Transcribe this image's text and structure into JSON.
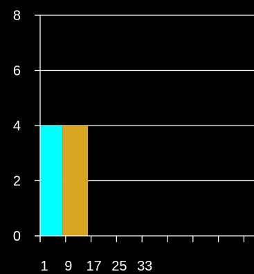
{
  "chart_data": {
    "type": "bar",
    "title": "",
    "xlabel": "",
    "ylabel": "",
    "ylim": [
      0,
      8
    ],
    "xlim": [
      0,
      36
    ],
    "x_ticks": [
      "1",
      "9",
      "17",
      "25",
      "33"
    ],
    "y_ticks": [
      "0",
      "2",
      "4",
      "6",
      "8"
    ],
    "grid": "horizontal",
    "legend": "none",
    "bars": [
      {
        "x_start": 0,
        "x_end": 7,
        "value": 4,
        "color": "#00ffff"
      },
      {
        "x_start": 7,
        "x_end": 15,
        "value": 4,
        "color": "#daa520"
      }
    ]
  },
  "colors": {
    "background": "#000000",
    "axis": "#ffffff",
    "grid": "#ffffff"
  }
}
